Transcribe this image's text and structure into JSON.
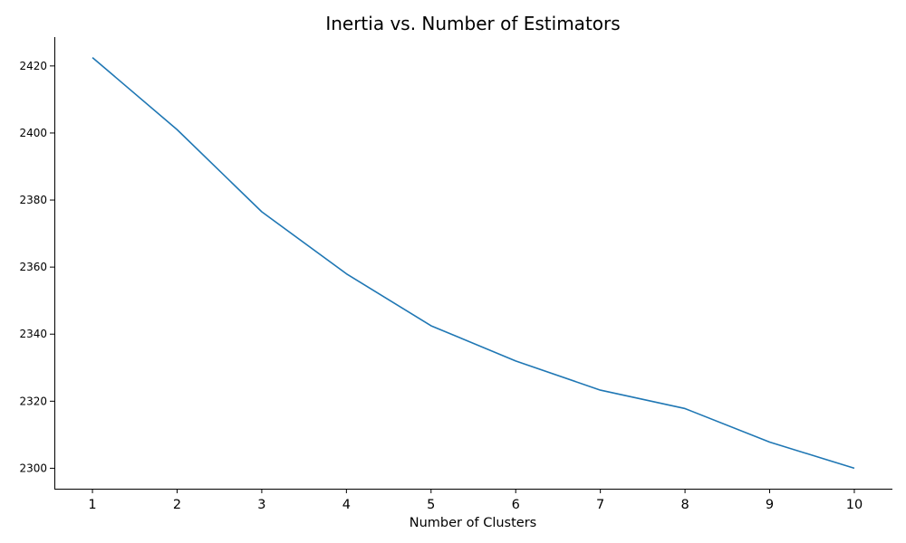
{
  "chart_data": {
    "type": "line",
    "title": "Inertia vs. Number of Estimators",
    "xlabel": "Number of Clusters",
    "ylabel": "",
    "x": [
      1,
      2,
      3,
      4,
      5,
      6,
      7,
      8,
      9,
      10
    ],
    "series": [
      {
        "values": [
          2422.5,
          2401.0,
          2376.5,
          2358.0,
          2342.5,
          2332.0,
          2323.3,
          2317.8,
          2307.8,
          2300.0
        ],
        "color": "#1f77b4"
      }
    ],
    "xticks": [
      "1",
      "2",
      "3",
      "4",
      "5",
      "6",
      "7",
      "8",
      "9",
      "10"
    ],
    "yticks": [
      "2300",
      "2320",
      "2340",
      "2360",
      "2380",
      "2400",
      "2420"
    ],
    "ylim": [
      2293.9,
      2428.6
    ],
    "xlim": [
      0.55,
      10.45
    ],
    "grid": false,
    "legend": "none"
  }
}
